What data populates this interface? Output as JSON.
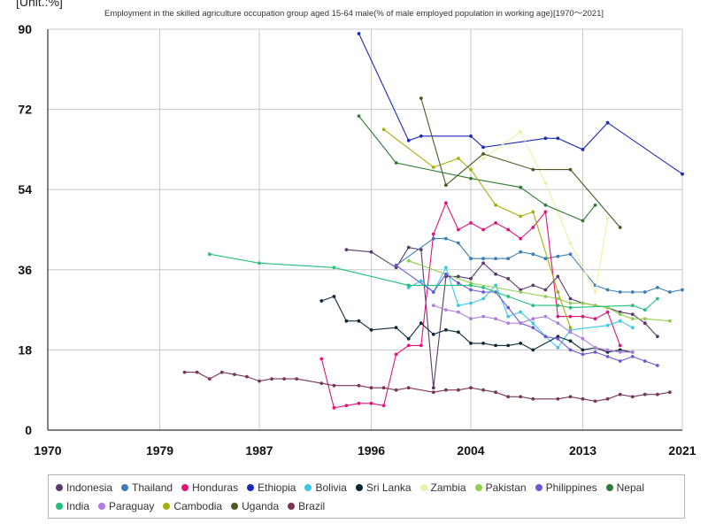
{
  "unit_label": "[Unit.:%]",
  "chart_data": {
    "type": "line",
    "title": "Employment in the skilled agriculture occupation group aged 15-64 male(% of male employed population in working age)[1970～2021]",
    "xlabel": "",
    "ylabel": "",
    "xlim": [
      1970,
      2021
    ],
    "ylim": [
      0,
      90
    ],
    "x_ticks": [
      "1970",
      "1979",
      "1987",
      "1996",
      "2004",
      "2013",
      "2021"
    ],
    "y_ticks": [
      "0",
      "18",
      "36",
      "54",
      "72",
      "90"
    ],
    "grid": true,
    "legend_position": "bottom",
    "series": [
      {
        "name": "Indonesia",
        "color": "#5a3a6e",
        "points": [
          [
            1994,
            40.5
          ],
          [
            1996,
            40.0
          ],
          [
            1998,
            36.5
          ],
          [
            1999,
            41.0
          ],
          [
            2000,
            40.5
          ],
          [
            2001,
            9.5
          ],
          [
            2002,
            34.5
          ],
          [
            2003,
            34.5
          ],
          [
            2004,
            34.0
          ],
          [
            2005,
            37.5
          ],
          [
            2006,
            35.0
          ],
          [
            2007,
            34.0
          ],
          [
            2008,
            31.5
          ],
          [
            2009,
            32.5
          ],
          [
            2010,
            31.5
          ],
          [
            2011,
            34.5
          ],
          [
            2012,
            29.5
          ],
          [
            2013,
            28.5
          ],
          [
            2014,
            28.0
          ],
          [
            2015,
            27.5
          ],
          [
            2016,
            26.5
          ],
          [
            2017,
            26.0
          ],
          [
            2018,
            24.0
          ],
          [
            2019,
            21.0
          ]
        ]
      },
      {
        "name": "Thailand",
        "color": "#3a7fb8",
        "points": [
          [
            1998,
            37.0
          ],
          [
            2001,
            43.0
          ],
          [
            2002,
            43.0
          ],
          [
            2003,
            42.0
          ],
          [
            2004,
            38.5
          ],
          [
            2005,
            38.5
          ],
          [
            2006,
            38.5
          ],
          [
            2007,
            38.5
          ],
          [
            2008,
            40.0
          ],
          [
            2009,
            39.5
          ],
          [
            2010,
            38.5
          ],
          [
            2011,
            39.0
          ],
          [
            2012,
            39.5
          ],
          [
            2014,
            32.5
          ],
          [
            2015,
            31.5
          ],
          [
            2016,
            31.0
          ],
          [
            2017,
            31.0
          ],
          [
            2018,
            31.0
          ],
          [
            2019,
            32.0
          ],
          [
            2020,
            31.0
          ],
          [
            2021,
            31.5
          ]
        ]
      },
      {
        "name": "Honduras",
        "color": "#e0147a",
        "points": [
          [
            1992,
            16.0
          ],
          [
            1993,
            5.0
          ],
          [
            1994,
            5.5
          ],
          [
            1995,
            6.0
          ],
          [
            1996,
            6.0
          ],
          [
            1997,
            5.5
          ],
          [
            1998,
            17.0
          ],
          [
            1999,
            19.0
          ],
          [
            2000,
            19.0
          ],
          [
            2001,
            44.0
          ],
          [
            2002,
            51.0
          ],
          [
            2003,
            45.0
          ],
          [
            2004,
            46.5
          ],
          [
            2005,
            45.0
          ],
          [
            2006,
            46.5
          ],
          [
            2007,
            45.0
          ],
          [
            2008,
            43.0
          ],
          [
            2009,
            45.5
          ],
          [
            2010,
            49.0
          ],
          [
            2011,
            25.5
          ],
          [
            2012,
            25.5
          ],
          [
            2013,
            25.5
          ],
          [
            2014,
            25.0
          ],
          [
            2015,
            26.5
          ],
          [
            2016,
            19.0
          ]
        ]
      },
      {
        "name": "Ethiopia",
        "color": "#1a2bb5",
        "points": [
          [
            1995,
            89.0
          ],
          [
            1999,
            65.0
          ],
          [
            2000,
            66.0
          ],
          [
            2004,
            66.0
          ],
          [
            2005,
            63.5
          ],
          [
            2010,
            65.5
          ],
          [
            2011,
            65.5
          ],
          [
            2013,
            63.0
          ],
          [
            2015,
            69.0
          ],
          [
            2021,
            57.5
          ]
        ]
      },
      {
        "name": "Bolivia",
        "color": "#3cc8e6",
        "points": [
          [
            1999,
            32.0
          ],
          [
            2000,
            33.5
          ],
          [
            2001,
            31.0
          ],
          [
            2002,
            36.5
          ],
          [
            2003,
            28.0
          ],
          [
            2004,
            28.5
          ],
          [
            2005,
            29.5
          ],
          [
            2006,
            32.5
          ],
          [
            2007,
            25.5
          ],
          [
            2008,
            26.5
          ],
          [
            2009,
            24.0
          ],
          [
            2010,
            21.0
          ],
          [
            2011,
            18.5
          ],
          [
            2012,
            22.5
          ],
          [
            2015,
            23.5
          ],
          [
            2016,
            24.5
          ],
          [
            2017,
            23.0
          ]
        ]
      },
      {
        "name": "Sri Lanka",
        "color": "#0d2a3a",
        "points": [
          [
            1992,
            29.0
          ],
          [
            1993,
            30.0
          ],
          [
            1994,
            24.5
          ],
          [
            1995,
            24.5
          ],
          [
            1996,
            22.5
          ],
          [
            1998,
            23.0
          ],
          [
            1999,
            20.5
          ],
          [
            2000,
            24.0
          ],
          [
            2001,
            21.5
          ],
          [
            2002,
            22.5
          ],
          [
            2003,
            22.0
          ],
          [
            2004,
            19.5
          ],
          [
            2005,
            19.5
          ],
          [
            2006,
            19.0
          ],
          [
            2007,
            19.0
          ],
          [
            2008,
            19.5
          ],
          [
            2009,
            18.0
          ],
          [
            2011,
            21.0
          ],
          [
            2012,
            20.0
          ],
          [
            2013,
            18.0
          ],
          [
            2014,
            18.5
          ],
          [
            2015,
            17.5
          ],
          [
            2016,
            18.0
          ],
          [
            2017,
            17.5
          ]
        ]
      },
      {
        "name": "Zambia",
        "color": "#eef0a5",
        "points": [
          [
            2005,
            61.0
          ],
          [
            2008,
            67.0
          ],
          [
            2010,
            55.5
          ],
          [
            2012,
            42.0
          ],
          [
            2014,
            31.0
          ],
          [
            2015,
            47.5
          ]
        ]
      },
      {
        "name": "Pakistan",
        "color": "#8fd14f",
        "points": [
          [
            1999,
            38.0
          ],
          [
            2004,
            33.0
          ],
          [
            2008,
            31.0
          ],
          [
            2010,
            30.0
          ],
          [
            2011,
            29.5
          ],
          [
            2012,
            28.5
          ],
          [
            2013,
            28.5
          ],
          [
            2014,
            28.0
          ],
          [
            2015,
            27.5
          ],
          [
            2016,
            26.0
          ],
          [
            2017,
            25.0
          ],
          [
            2018,
            25.0
          ],
          [
            2020,
            24.5
          ]
        ]
      },
      {
        "name": "Philippines",
        "color": "#6a5ad6",
        "points": [
          [
            1998,
            37.0
          ],
          [
            2001,
            31.0
          ],
          [
            2002,
            35.0
          ],
          [
            2003,
            33.0
          ],
          [
            2004,
            31.5
          ],
          [
            2005,
            31.0
          ],
          [
            2006,
            31.0
          ],
          [
            2007,
            27.5
          ],
          [
            2008,
            24.0
          ],
          [
            2009,
            23.0
          ],
          [
            2010,
            21.0
          ],
          [
            2011,
            20.5
          ],
          [
            2012,
            18.0
          ],
          [
            2013,
            17.0
          ],
          [
            2014,
            17.5
          ],
          [
            2015,
            16.5
          ],
          [
            2016,
            15.5
          ],
          [
            2017,
            16.5
          ],
          [
            2018,
            15.5
          ],
          [
            2019,
            14.5
          ]
        ]
      },
      {
        "name": "Nepal",
        "color": "#2e7d32",
        "points": [
          [
            1995,
            70.5
          ],
          [
            1998,
            60.0
          ],
          [
            2004,
            56.5
          ],
          [
            2008,
            54.5
          ],
          [
            2010,
            50.5
          ],
          [
            2013,
            47.0
          ],
          [
            2014,
            50.5
          ]
        ]
      },
      {
        "name": "India",
        "color": "#22c07a",
        "points": [
          [
            1983,
            39.5
          ],
          [
            1987,
            37.5
          ],
          [
            1993,
            36.5
          ],
          [
            1999,
            32.5
          ],
          [
            2004,
            32.5
          ],
          [
            2005,
            32.0
          ],
          [
            2007,
            30.0
          ],
          [
            2009,
            28.0
          ],
          [
            2011,
            28.0
          ],
          [
            2012,
            27.5
          ],
          [
            2017,
            28.0
          ],
          [
            2018,
            27.0
          ],
          [
            2019,
            29.5
          ]
        ]
      },
      {
        "name": "Paraguay",
        "color": "#b07ee0",
        "points": [
          [
            2001,
            28.0
          ],
          [
            2002,
            27.0
          ],
          [
            2003,
            26.5
          ],
          [
            2004,
            25.0
          ],
          [
            2005,
            25.5
          ],
          [
            2006,
            25.0
          ],
          [
            2007,
            24.0
          ],
          [
            2008,
            24.0
          ],
          [
            2009,
            25.0
          ],
          [
            2010,
            25.5
          ],
          [
            2011,
            24.0
          ],
          [
            2012,
            22.0
          ],
          [
            2013,
            20.5
          ],
          [
            2014,
            18.5
          ],
          [
            2015,
            18.0
          ],
          [
            2016,
            17.5
          ],
          [
            2017,
            17.5
          ]
        ]
      },
      {
        "name": "Cambodia",
        "color": "#a5b00e",
        "points": [
          [
            1997,
            67.5
          ],
          [
            2001,
            59.0
          ],
          [
            2003,
            61.0
          ],
          [
            2004,
            58.5
          ],
          [
            2006,
            50.5
          ],
          [
            2008,
            48.0
          ],
          [
            2009,
            49.0
          ],
          [
            2011,
            31.0
          ],
          [
            2012,
            23.0
          ]
        ]
      },
      {
        "name": "Uganda",
        "color": "#4a5a22",
        "points": [
          [
            2000,
            74.5
          ],
          [
            2002,
            55.0
          ],
          [
            2005,
            62.0
          ],
          [
            2009,
            58.5
          ],
          [
            2012,
            58.5
          ],
          [
            2016,
            45.5
          ]
        ]
      },
      {
        "name": "Brazil",
        "color": "#7a3558",
        "points": [
          [
            1981,
            13.0
          ],
          [
            1982,
            13.0
          ],
          [
            1983,
            11.5
          ],
          [
            1984,
            13.0
          ],
          [
            1985,
            12.5
          ],
          [
            1986,
            12.0
          ],
          [
            1987,
            11.0
          ],
          [
            1988,
            11.5
          ],
          [
            1989,
            11.5
          ],
          [
            1990,
            11.5
          ],
          [
            1992,
            10.5
          ],
          [
            1993,
            10.0
          ],
          [
            1995,
            10.0
          ],
          [
            1996,
            9.5
          ],
          [
            1997,
            9.5
          ],
          [
            1998,
            9.0
          ],
          [
            1999,
            9.5
          ],
          [
            2001,
            8.5
          ],
          [
            2002,
            9.0
          ],
          [
            2003,
            9.0
          ],
          [
            2004,
            9.5
          ],
          [
            2005,
            9.0
          ],
          [
            2006,
            8.5
          ],
          [
            2007,
            7.5
          ],
          [
            2008,
            7.5
          ],
          [
            2009,
            7.0
          ],
          [
            2011,
            7.0
          ],
          [
            2012,
            7.5
          ],
          [
            2013,
            7.0
          ],
          [
            2014,
            6.5
          ],
          [
            2015,
            7.0
          ],
          [
            2016,
            8.0
          ],
          [
            2017,
            7.5
          ],
          [
            2018,
            8.0
          ],
          [
            2019,
            8.0
          ],
          [
            2020,
            8.5
          ]
        ]
      }
    ]
  }
}
